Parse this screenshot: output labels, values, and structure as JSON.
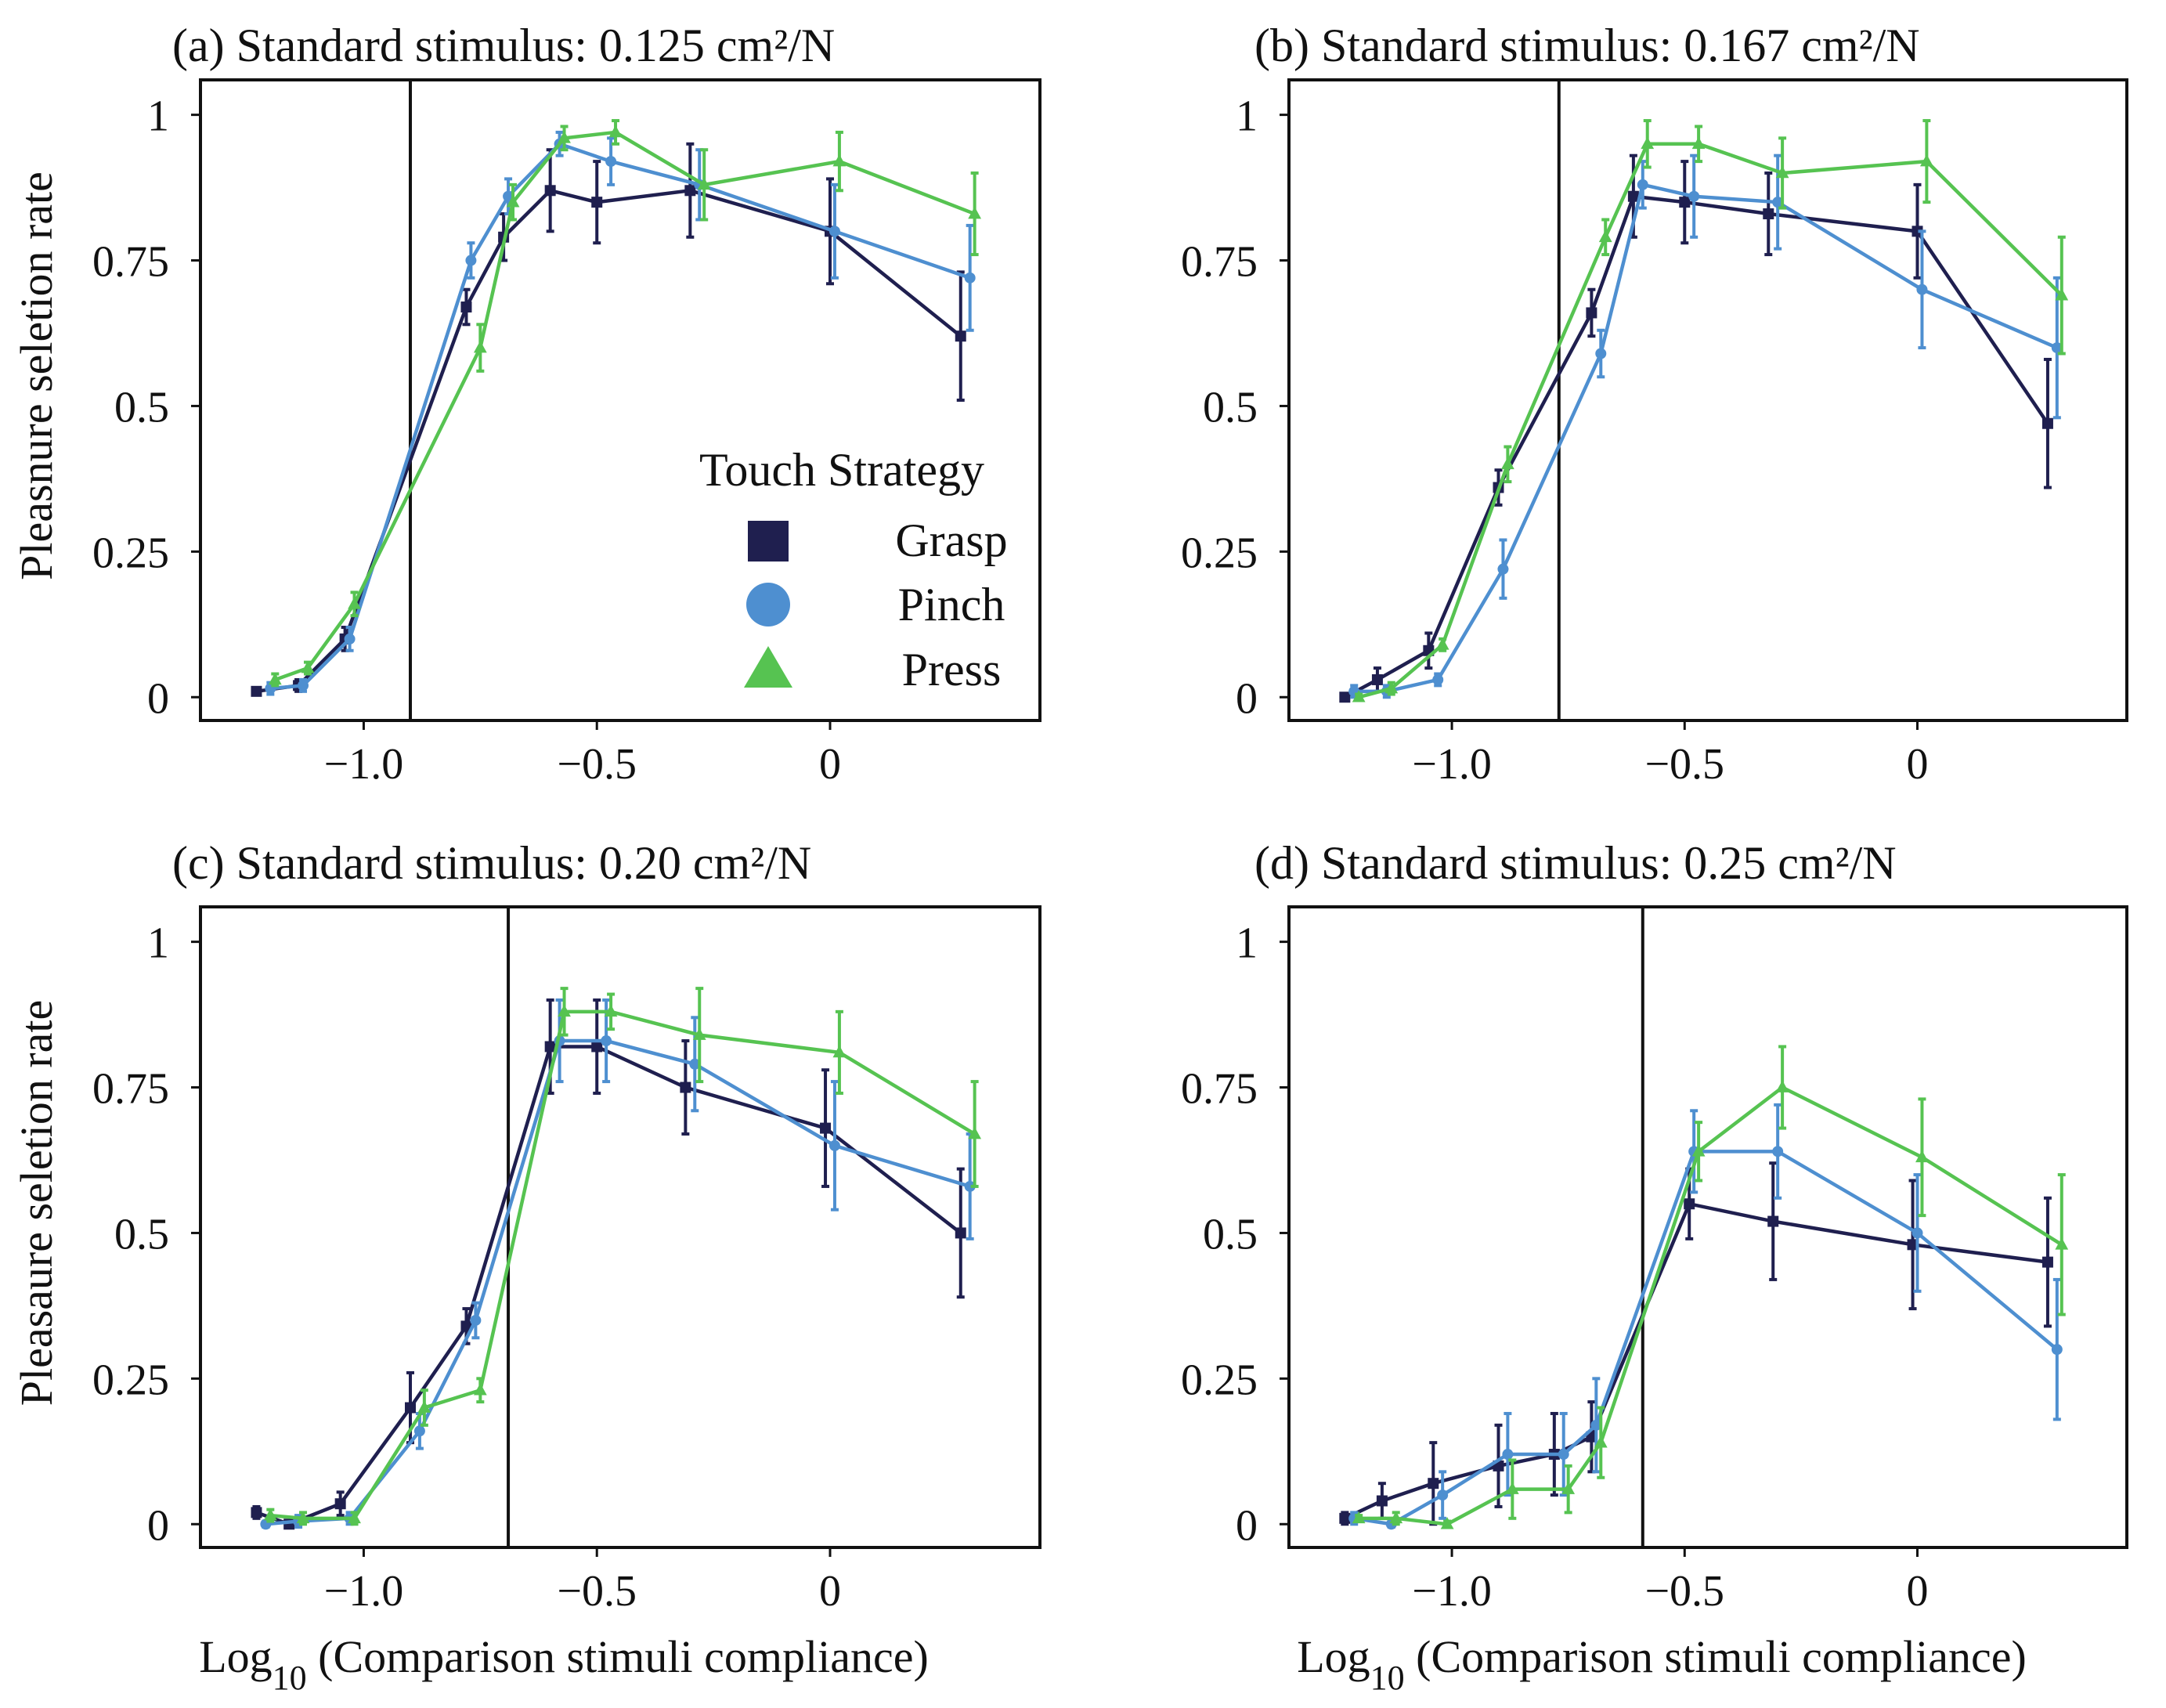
{
  "colors": {
    "grasp": "#1f1f4f",
    "pinch": "#4e8fd0",
    "press": "#56c351",
    "axis": "#111111"
  },
  "figure": {
    "xlabel_main": "Log",
    "xlabel_sub": "10",
    "xlabel_rest": " (Comparison stimuli compliance)"
  },
  "legend": {
    "title": "Touch Strategy",
    "entries": [
      {
        "name": "Grasp",
        "marker": "square"
      },
      {
        "name": "Pinch",
        "marker": "circle"
      },
      {
        "name": "Press",
        "marker": "triangle"
      }
    ]
  },
  "chart_data": [
    {
      "type": "line",
      "title": "(a) Standard stimulus: 0.125 cm²/N",
      "ylabel": "Pleasnure seletion rate",
      "xlabel": "",
      "xlim": [
        -1.35,
        0.45
      ],
      "ylim": [
        -0.04,
        1.06
      ],
      "xticks": [
        -1.0,
        -0.5,
        0
      ],
      "xtick_labels": [
        "−1.0",
        "−0.5",
        "0"
      ],
      "yticks": [
        0,
        0.25,
        0.5,
        0.75,
        1
      ],
      "ytick_labels": [
        "0",
        "0.25",
        "0.5",
        "0.75",
        "1"
      ],
      "vline": -0.9,
      "series": [
        {
          "name": "Grasp",
          "x": [
            -1.23,
            -1.14,
            -1.04,
            -0.78,
            -0.7,
            -0.6,
            -0.5,
            -0.3,
            0.0,
            0.28
          ],
          "y": [
            0.01,
            0.02,
            0.1,
            0.67,
            0.79,
            0.87,
            0.85,
            0.87,
            0.8,
            0.62
          ],
          "err": [
            0.005,
            0.01,
            0.02,
            0.03,
            0.04,
            0.07,
            0.07,
            0.08,
            0.09,
            0.11
          ]
        },
        {
          "name": "Pinch",
          "x": [
            -1.2,
            -1.13,
            -1.03,
            -0.77,
            -0.69,
            -0.58,
            -0.47,
            -0.28,
            0.01,
            0.3
          ],
          "y": [
            0.015,
            0.02,
            0.1,
            0.75,
            0.86,
            0.95,
            0.92,
            0.88,
            0.8,
            0.72
          ],
          "err": [
            0.01,
            0.01,
            0.02,
            0.03,
            0.03,
            0.02,
            0.04,
            0.06,
            0.08,
            0.09
          ]
        },
        {
          "name": "Press",
          "x": [
            -1.19,
            -1.12,
            -1.02,
            -0.75,
            -0.68,
            -0.57,
            -0.46,
            -0.27,
            0.02,
            0.31
          ],
          "y": [
            0.03,
            0.05,
            0.16,
            0.6,
            0.85,
            0.96,
            0.97,
            0.88,
            0.92,
            0.83
          ],
          "err": [
            0.01,
            0.01,
            0.02,
            0.04,
            0.03,
            0.02,
            0.02,
            0.06,
            0.05,
            0.07
          ]
        }
      ]
    },
    {
      "type": "line",
      "title": "(b) Standard stimulus: 0.167 cm²/N",
      "ylabel": "",
      "xlabel": "",
      "xlim": [
        -1.35,
        0.45
      ],
      "ylim": [
        -0.04,
        1.06
      ],
      "xticks": [
        -1.0,
        -0.5,
        0
      ],
      "xtick_labels": [
        "−1.0",
        "−0.5",
        "0"
      ],
      "yticks": [
        0,
        0.25,
        0.5,
        0.75,
        1
      ],
      "ytick_labels": [
        "0",
        "0.25",
        "0.5",
        "0.75",
        "1"
      ],
      "vline": -0.77,
      "series": [
        {
          "name": "Grasp",
          "x": [
            -1.23,
            -1.16,
            -1.05,
            -0.9,
            -0.7,
            -0.61,
            -0.5,
            -0.32,
            0.0,
            0.28
          ],
          "y": [
            0.0,
            0.03,
            0.08,
            0.36,
            0.66,
            0.86,
            0.85,
            0.83,
            0.8,
            0.47
          ],
          "err": [
            0.005,
            0.02,
            0.03,
            0.03,
            0.04,
            0.07,
            0.07,
            0.07,
            0.08,
            0.11
          ]
        },
        {
          "name": "Pinch",
          "x": [
            -1.21,
            -1.14,
            -1.03,
            -0.89,
            -0.68,
            -0.59,
            -0.48,
            -0.3,
            0.01,
            0.3
          ],
          "y": [
            0.01,
            0.01,
            0.03,
            0.22,
            0.59,
            0.88,
            0.86,
            0.85,
            0.7,
            0.6
          ],
          "err": [
            0.01,
            0.01,
            0.01,
            0.05,
            0.04,
            0.04,
            0.07,
            0.08,
            0.1,
            0.12
          ]
        },
        {
          "name": "Press",
          "x": [
            -1.2,
            -1.13,
            -1.02,
            -0.88,
            -0.67,
            -0.58,
            -0.47,
            -0.29,
            0.02,
            0.31
          ],
          "y": [
            0.0,
            0.015,
            0.09,
            0.4,
            0.79,
            0.95,
            0.95,
            0.9,
            0.92,
            0.69
          ],
          "err": [
            0.005,
            0.01,
            0.01,
            0.03,
            0.03,
            0.04,
            0.03,
            0.06,
            0.07,
            0.1
          ]
        }
      ]
    },
    {
      "type": "line",
      "title": "(c) Standard stimulus: 0.20 cm²/N",
      "ylabel": "Pleasaure seletion rate",
      "xlabel": "log",
      "xlim": [
        -1.35,
        0.45
      ],
      "ylim": [
        -0.04,
        1.06
      ],
      "xticks": [
        -1.0,
        -0.5,
        0
      ],
      "xtick_labels": [
        "−1.0",
        "−0.5",
        "0"
      ],
      "yticks": [
        0,
        0.25,
        0.5,
        0.75,
        1
      ],
      "ytick_labels": [
        "0",
        "0.25",
        "0.5",
        "0.75",
        "1"
      ],
      "vline": -0.69,
      "series": [
        {
          "name": "Grasp",
          "x": [
            -1.23,
            -1.16,
            -1.05,
            -0.9,
            -0.78,
            -0.6,
            -0.5,
            -0.31,
            -0.01,
            0.28
          ],
          "y": [
            0.02,
            0.0,
            0.035,
            0.2,
            0.34,
            0.82,
            0.82,
            0.75,
            0.68,
            0.5
          ],
          "err": [
            0.01,
            0.005,
            0.02,
            0.06,
            0.03,
            0.08,
            0.08,
            0.08,
            0.1,
            0.11
          ]
        },
        {
          "name": "Pinch",
          "x": [
            -1.21,
            -1.14,
            -1.03,
            -0.88,
            -0.76,
            -0.58,
            -0.48,
            -0.29,
            0.01,
            0.3
          ],
          "y": [
            0.0,
            0.005,
            0.01,
            0.16,
            0.35,
            0.83,
            0.83,
            0.79,
            0.65,
            0.58
          ],
          "err": [
            0.005,
            0.01,
            0.01,
            0.03,
            0.03,
            0.07,
            0.07,
            0.08,
            0.11,
            0.09
          ]
        },
        {
          "name": "Press",
          "x": [
            -1.2,
            -1.13,
            -1.02,
            -0.87,
            -0.75,
            -0.57,
            -0.47,
            -0.28,
            0.02,
            0.31
          ],
          "y": [
            0.015,
            0.01,
            0.01,
            0.2,
            0.23,
            0.88,
            0.88,
            0.84,
            0.81,
            0.67
          ],
          "err": [
            0.01,
            0.01,
            0.01,
            0.03,
            0.02,
            0.04,
            0.03,
            0.08,
            0.07,
            0.09
          ]
        }
      ]
    },
    {
      "type": "line",
      "title": "(d) Standard stimulus: 0.25 cm²/N",
      "ylabel": "",
      "xlabel": "log",
      "xlim": [
        -1.35,
        0.45
      ],
      "ylim": [
        -0.04,
        1.06
      ],
      "xticks": [
        -1.0,
        -0.5,
        0
      ],
      "xtick_labels": [
        "−1.0",
        "−0.5",
        "0"
      ],
      "yticks": [
        0,
        0.25,
        0.5,
        0.75,
        1
      ],
      "ytick_labels": [
        "0",
        "0.25",
        "0.5",
        "0.75",
        "1"
      ],
      "vline": -0.59,
      "series": [
        {
          "name": "Grasp",
          "x": [
            -1.23,
            -1.15,
            -1.04,
            -0.9,
            -0.78,
            -0.7,
            -0.49,
            -0.31,
            -0.01,
            0.28
          ],
          "y": [
            0.01,
            0.04,
            0.07,
            0.1,
            0.12,
            0.15,
            0.55,
            0.52,
            0.48,
            0.45
          ],
          "err": [
            0.01,
            0.03,
            0.07,
            0.07,
            0.07,
            0.06,
            0.06,
            0.1,
            0.11,
            0.11
          ]
        },
        {
          "name": "Pinch",
          "x": [
            -1.21,
            -1.13,
            -1.02,
            -0.88,
            -0.76,
            -0.69,
            -0.48,
            -0.3,
            0.0,
            0.3
          ],
          "y": [
            0.01,
            0.0,
            0.05,
            0.12,
            0.12,
            0.17,
            0.64,
            0.64,
            0.5,
            0.3
          ],
          "err": [
            0.01,
            0.005,
            0.04,
            0.07,
            0.07,
            0.08,
            0.07,
            0.08,
            0.1,
            0.12
          ]
        },
        {
          "name": "Press",
          "x": [
            -1.2,
            -1.12,
            -1.01,
            -0.87,
            -0.75,
            -0.68,
            -0.47,
            -0.29,
            0.01,
            0.31
          ],
          "y": [
            0.01,
            0.01,
            0.0,
            0.06,
            0.06,
            0.14,
            0.64,
            0.75,
            0.63,
            0.48
          ],
          "err": [
            0.005,
            0.01,
            0.005,
            0.05,
            0.04,
            0.06,
            0.05,
            0.07,
            0.1,
            0.12
          ]
        }
      ]
    }
  ]
}
